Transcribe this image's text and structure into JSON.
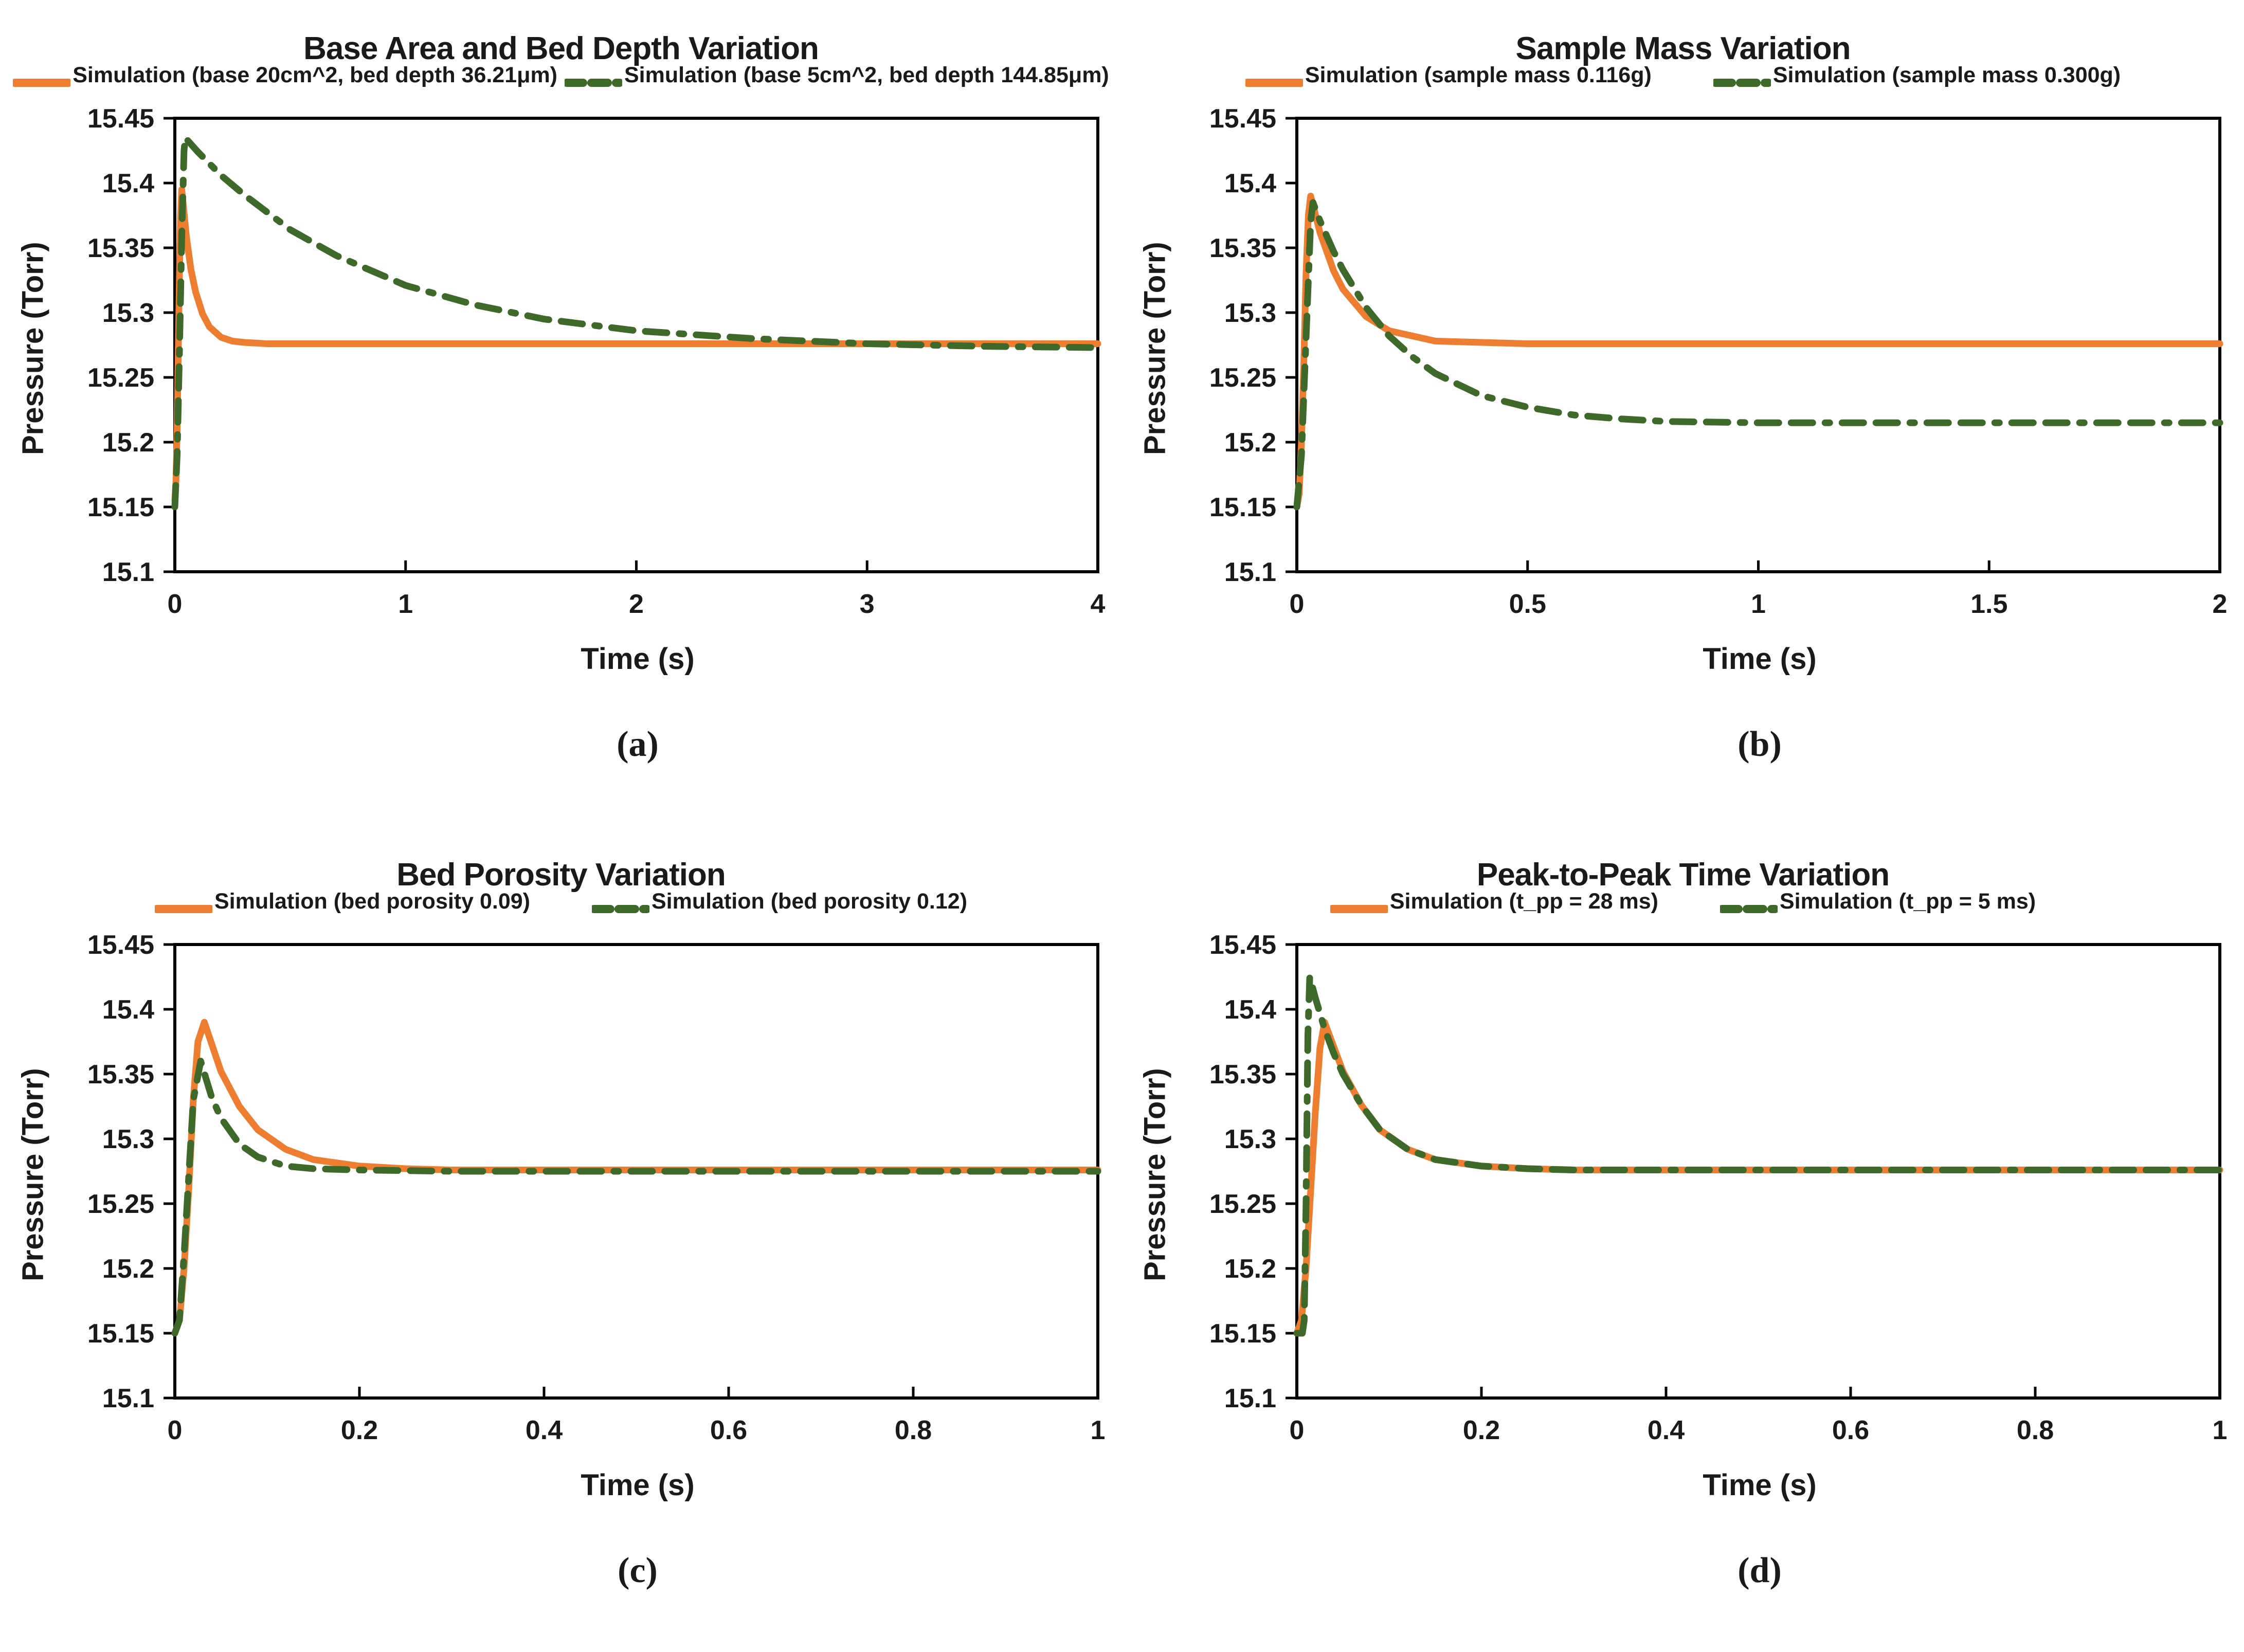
{
  "figure": {
    "xlabel": "Time (s)",
    "ylabel": "Pressure (Torr)",
    "accent_orange": "#ED7D31",
    "accent_green": "#3F682B"
  },
  "chart_data": [
    {
      "type": "line",
      "panel_label": "(a)",
      "title": "Base Area and Bed Depth Variation",
      "xlabel": "Time (s)",
      "ylabel": "Pressure (Torr)",
      "xlim": [
        0,
        4
      ],
      "ylim": [
        15.1,
        15.45
      ],
      "grid": false,
      "legend_position": "top",
      "xticks": [
        0,
        1,
        2,
        3,
        4
      ],
      "xtick_labels": [
        "0",
        "1",
        "2",
        "3",
        "4"
      ],
      "yticks": [
        15.1,
        15.15,
        15.2,
        15.25,
        15.3,
        15.35,
        15.4,
        15.45
      ],
      "ytick_labels": [
        "15.1",
        "15.15",
        "15.2",
        "15.25",
        "15.3",
        "15.35",
        "15.4",
        "15.45"
      ],
      "series": [
        {
          "name": "Simulation (base 20cm^2, bed depth 36.21μm)",
          "color": "#ED7D31",
          "style": "solid",
          "x": [
            0,
            0.005,
            0.01,
            0.015,
            0.02,
            0.025,
            0.03,
            0.05,
            0.07,
            0.09,
            0.12,
            0.15,
            0.2,
            0.25,
            0.3,
            0.4,
            0.5,
            0.75,
            1,
            1.5,
            2,
            2.5,
            3,
            3.5,
            4
          ],
          "y": [
            15.155,
            15.17,
            15.21,
            15.27,
            15.33,
            15.375,
            15.395,
            15.359,
            15.333,
            15.316,
            15.299,
            15.289,
            15.281,
            15.278,
            15.277,
            15.276,
            15.276,
            15.276,
            15.276,
            15.276,
            15.276,
            15.276,
            15.276,
            15.276,
            15.276
          ]
        },
        {
          "name": "Simulation (base 5cm^2, bed depth 144.85μm)",
          "color": "#3F682B",
          "style": "dashed",
          "x": [
            0,
            0.01,
            0.02,
            0.03,
            0.04,
            0.045,
            0.1,
            0.2,
            0.3,
            0.5,
            0.7,
            1,
            1.3,
            1.6,
            2,
            2.5,
            3,
            3.5,
            4
          ],
          "y": [
            15.15,
            15.19,
            15.27,
            15.36,
            15.425,
            15.435,
            15.424,
            15.406,
            15.391,
            15.364,
            15.344,
            15.321,
            15.306,
            15.295,
            15.286,
            15.28,
            15.276,
            15.274,
            15.273
          ]
        }
      ]
    },
    {
      "type": "line",
      "panel_label": "(b)",
      "title": "Sample Mass Variation",
      "xlabel": "Time (s)",
      "ylabel": "Pressure (Torr)",
      "xlim": [
        0,
        2
      ],
      "ylim": [
        15.1,
        15.45
      ],
      "grid": false,
      "legend_position": "top",
      "xticks": [
        0,
        0.5,
        1,
        1.5,
        2
      ],
      "xtick_labels": [
        "0",
        "0.5",
        "1",
        "1.5",
        "2"
      ],
      "yticks": [
        15.1,
        15.15,
        15.2,
        15.25,
        15.3,
        15.35,
        15.4,
        15.45
      ],
      "ytick_labels": [
        "15.1",
        "15.15",
        "15.2",
        "15.25",
        "15.3",
        "15.35",
        "15.4",
        "15.45"
      ],
      "series": [
        {
          "name": "Simulation (sample mass 0.116g)",
          "color": "#ED7D31",
          "style": "solid",
          "x": [
            0,
            0.005,
            0.01,
            0.015,
            0.02,
            0.025,
            0.03,
            0.05,
            0.08,
            0.1,
            0.15,
            0.2,
            0.3,
            0.4,
            0.5,
            0.75,
            1,
            1.25,
            1.5,
            1.75,
            2
          ],
          "y": [
            15.15,
            15.16,
            15.2,
            15.26,
            15.33,
            15.375,
            15.39,
            15.362,
            15.332,
            15.318,
            15.297,
            15.286,
            15.278,
            15.277,
            15.276,
            15.276,
            15.276,
            15.276,
            15.276,
            15.276,
            15.276
          ]
        },
        {
          "name": "Simulation (sample mass 0.300g)",
          "color": "#3F682B",
          "style": "dashed",
          "x": [
            0,
            0.01,
            0.02,
            0.03,
            0.035,
            0.05,
            0.08,
            0.1,
            0.15,
            0.2,
            0.25,
            0.3,
            0.4,
            0.5,
            0.6,
            0.7,
            0.8,
            1,
            1.25,
            1.5,
            1.75,
            2
          ],
          "y": [
            15.15,
            15.19,
            15.28,
            15.37,
            15.385,
            15.371,
            15.347,
            15.333,
            15.304,
            15.282,
            15.266,
            15.253,
            15.236,
            15.227,
            15.221,
            15.218,
            15.216,
            15.215,
            15.215,
            15.215,
            15.215,
            15.215
          ]
        }
      ]
    },
    {
      "type": "line",
      "panel_label": "(c)",
      "title": "Bed Porosity Variation",
      "xlabel": "Time (s)",
      "ylabel": "Pressure (Torr)",
      "xlim": [
        0,
        1
      ],
      "ylim": [
        15.1,
        15.45
      ],
      "grid": false,
      "legend_position": "top",
      "xticks": [
        0,
        0.2,
        0.4,
        0.6,
        0.8,
        1
      ],
      "xtick_labels": [
        "0",
        "0.2",
        "0.4",
        "0.6",
        "0.8",
        "1"
      ],
      "yticks": [
        15.1,
        15.15,
        15.2,
        15.25,
        15.3,
        15.35,
        15.4,
        15.45
      ],
      "ytick_labels": [
        "15.1",
        "15.15",
        "15.2",
        "15.25",
        "15.3",
        "15.35",
        "15.4",
        "15.45"
      ],
      "series": [
        {
          "name": "Simulation (bed porosity 0.09)",
          "color": "#ED7D31",
          "style": "solid",
          "x": [
            0,
            0.005,
            0.01,
            0.015,
            0.02,
            0.025,
            0.032,
            0.05,
            0.07,
            0.09,
            0.12,
            0.15,
            0.2,
            0.25,
            0.3,
            0.4,
            0.5,
            0.6,
            0.8,
            1
          ],
          "y": [
            15.15,
            15.16,
            15.2,
            15.26,
            15.33,
            15.375,
            15.39,
            15.352,
            15.325,
            15.307,
            15.292,
            15.284,
            15.279,
            15.277,
            15.276,
            15.276,
            15.276,
            15.276,
            15.276,
            15.276
          ]
        },
        {
          "name": "Simulation (bed porosity 0.12)",
          "color": "#3F682B",
          "style": "dashed",
          "x": [
            0,
            0.005,
            0.01,
            0.015,
            0.02,
            0.028,
            0.04,
            0.05,
            0.07,
            0.09,
            0.12,
            0.15,
            0.2,
            0.3,
            0.4,
            0.5,
            0.6,
            0.8,
            1
          ],
          "y": [
            15.15,
            15.16,
            15.21,
            15.27,
            15.33,
            15.36,
            15.332,
            15.316,
            15.296,
            15.286,
            15.279,
            15.277,
            15.276,
            15.275,
            15.275,
            15.275,
            15.275,
            15.275,
            15.275
          ]
        }
      ]
    },
    {
      "type": "line",
      "panel_label": "(d)",
      "title": "Peak-to-Peak Time Variation",
      "xlabel": "Time (s)",
      "ylabel": "Pressure (Torr)",
      "xlim": [
        0,
        1
      ],
      "ylim": [
        15.1,
        15.45
      ],
      "grid": false,
      "legend_position": "top",
      "xticks": [
        0,
        0.2,
        0.4,
        0.6,
        0.8,
        1
      ],
      "xtick_labels": [
        "0",
        "0.2",
        "0.4",
        "0.6",
        "0.8",
        "1"
      ],
      "yticks": [
        15.1,
        15.15,
        15.2,
        15.25,
        15.3,
        15.35,
        15.4,
        15.45
      ],
      "ytick_labels": [
        "15.1",
        "15.15",
        "15.2",
        "15.25",
        "15.3",
        "15.35",
        "15.4",
        "15.45"
      ],
      "series": [
        {
          "name": "Simulation (t_pp = 28 ms)",
          "color": "#ED7D31",
          "style": "solid",
          "x": [
            0,
            0.005,
            0.01,
            0.015,
            0.02,
            0.025,
            0.03,
            0.05,
            0.07,
            0.09,
            0.12,
            0.15,
            0.2,
            0.25,
            0.3,
            0.4,
            0.5,
            0.6,
            0.8,
            1
          ],
          "y": [
            15.15,
            15.16,
            15.2,
            15.26,
            15.32,
            15.37,
            15.39,
            15.352,
            15.326,
            15.307,
            15.292,
            15.284,
            15.279,
            15.277,
            15.276,
            15.276,
            15.276,
            15.276,
            15.276,
            15.276
          ]
        },
        {
          "name": "Simulation (t_pp = 5 ms)",
          "color": "#3F682B",
          "style": "dashed",
          "x": [
            0,
            0.006,
            0.008,
            0.01,
            0.012,
            0.014,
            0.02,
            0.03,
            0.04,
            0.05,
            0.07,
            0.09,
            0.12,
            0.15,
            0.2,
            0.25,
            0.3,
            0.4,
            0.5,
            0.6,
            0.8,
            1
          ],
          "y": [
            15.15,
            15.15,
            15.16,
            15.25,
            15.38,
            15.425,
            15.409,
            15.385,
            15.366,
            15.35,
            15.326,
            15.307,
            15.292,
            15.284,
            15.279,
            15.277,
            15.276,
            15.276,
            15.276,
            15.276,
            15.276,
            15.276
          ]
        }
      ]
    }
  ]
}
